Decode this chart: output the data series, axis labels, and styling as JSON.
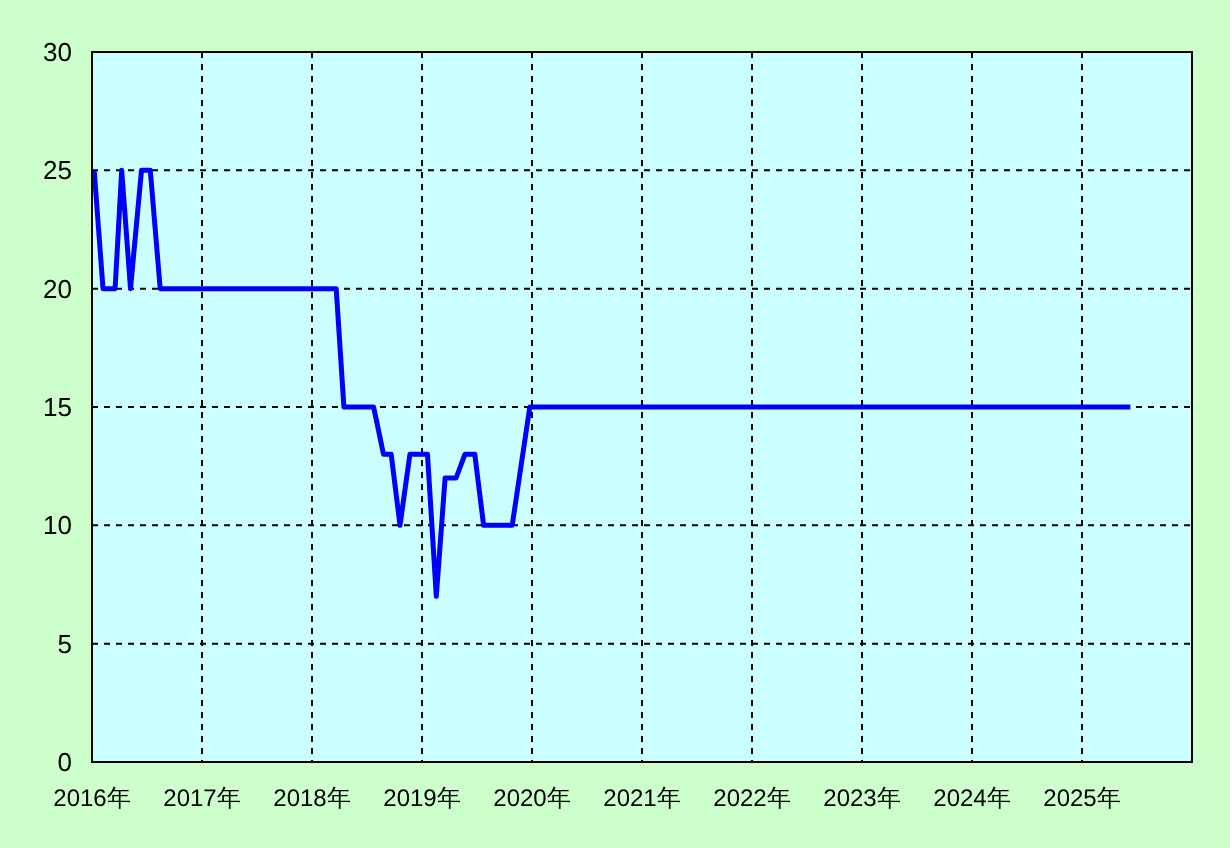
{
  "chart_data": {
    "type": "line",
    "xlim": [
      2016,
      2026
    ],
    "ylim": [
      0,
      30
    ],
    "xticks": [
      {
        "value": 2016,
        "label": "2016年"
      },
      {
        "value": 2017,
        "label": "2017年"
      },
      {
        "value": 2018,
        "label": "2018年"
      },
      {
        "value": 2019,
        "label": "2019年"
      },
      {
        "value": 2020,
        "label": "2020年"
      },
      {
        "value": 2021,
        "label": "2021年"
      },
      {
        "value": 2022,
        "label": "2022年"
      },
      {
        "value": 2023,
        "label": "2023年"
      },
      {
        "value": 2024,
        "label": "2024年"
      },
      {
        "value": 2025,
        "label": "2025年"
      }
    ],
    "yticks": [
      0,
      5,
      10,
      15,
      20,
      25,
      30
    ],
    "grid": true,
    "line_style": "solid",
    "x": [
      2016.02,
      2016.1,
      2016.21,
      2016.27,
      2016.35,
      2016.45,
      2016.53,
      2016.62,
      2018.22,
      2018.29,
      2018.56,
      2018.65,
      2018.72,
      2018.8,
      2018.89,
      2019.05,
      2019.13,
      2019.21,
      2019.31,
      2019.39,
      2019.48,
      2019.56,
      2019.82,
      2019.98,
      2025.44
    ],
    "series": [
      {
        "color": "#0000ff",
        "values": [
          25,
          20,
          20,
          25,
          20,
          25,
          25,
          20,
          20,
          15,
          15,
          13,
          13,
          10,
          13,
          13,
          7,
          12,
          12,
          13,
          13,
          10,
          10,
          15,
          15
        ]
      }
    ]
  }
}
